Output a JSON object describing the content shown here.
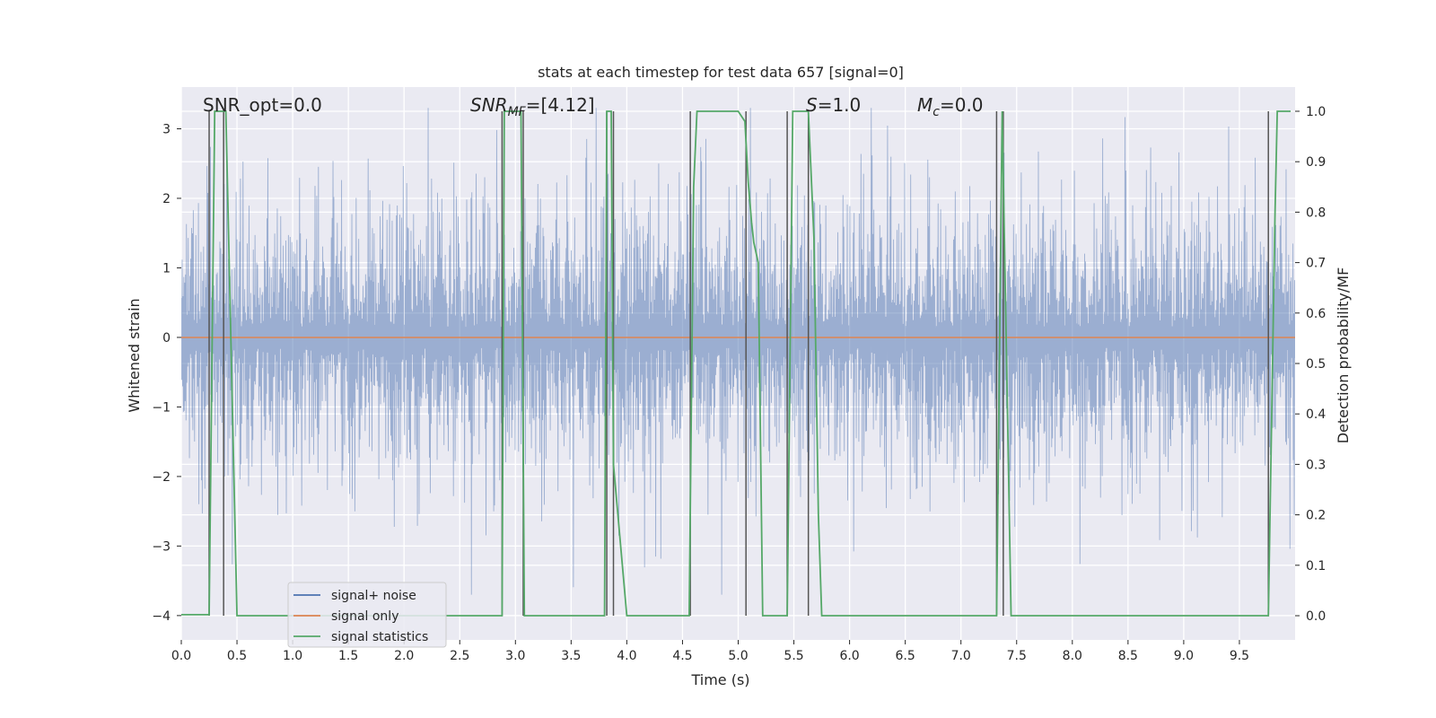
{
  "chart_data": {
    "type": "line",
    "title": "stats at each timestep for test data 657 [signal=0]",
    "xlabel": "Time (s)",
    "ylabel": "Whitened strain",
    "ylabel_right": "Detection probability/MF",
    "xlim": [
      0.0,
      10.0
    ],
    "ylim": [
      -4.35,
      3.6
    ],
    "ylim_right": [
      -0.048,
      1.048
    ],
    "x_ticks": [
      0.0,
      0.5,
      1.0,
      1.5,
      2.0,
      2.5,
      3.0,
      3.5,
      4.0,
      4.5,
      5.0,
      5.5,
      6.0,
      6.5,
      7.0,
      7.5,
      8.0,
      8.5,
      9.0,
      9.5
    ],
    "x_tick_labels": [
      "0.0",
      "0.5",
      "1.0",
      "1.5",
      "2.0",
      "2.5",
      "3.0",
      "3.5",
      "4.0",
      "4.5",
      "5.0",
      "5.5",
      "6.0",
      "6.5",
      "7.0",
      "7.5",
      "8.0",
      "8.5",
      "9.0",
      "9.5"
    ],
    "y_ticks": [
      3,
      2,
      1,
      0,
      -1,
      -2,
      -3,
      -4
    ],
    "y_tick_labels": [
      "3",
      "2",
      "1",
      "0",
      "−1",
      "−2",
      "−3",
      "−4"
    ],
    "y_right_ticks": [
      1.0,
      0.9,
      0.8,
      0.7,
      0.6,
      0.5,
      0.4,
      0.3,
      0.2,
      0.1,
      0.0
    ],
    "y_right_tick_labels": [
      "1.0",
      "0.9",
      "0.8",
      "0.7",
      "0.6",
      "0.5",
      "0.4",
      "0.3",
      "0.2",
      "0.1",
      "0.0"
    ],
    "grid": true,
    "legend_position": "lower-left",
    "annotations": {
      "snr_opt": "SNR_opt=0.0",
      "snr_mf": {
        "prefix": "SNR",
        "sub": "MF",
        "suffix": "=[4.12]"
      },
      "s": {
        "prefix": "S",
        "suffix": "=1.0"
      },
      "mc": {
        "prefix": "M",
        "sub": "c",
        "suffix": "=0.0"
      }
    },
    "series": [
      {
        "name": "signal+ noise",
        "color": "#4c72b0",
        "kind": "noise",
        "envelope": {
          "typical_abs": 1.8,
          "max": 3.3,
          "min": -3.7
        }
      },
      {
        "name": "signal only",
        "color": "#dd8452",
        "x": [
          0.0,
          10.0
        ],
        "y": [
          0.0,
          0.0
        ]
      },
      {
        "name": "signal statistics",
        "color": "#55a868",
        "axis": "right",
        "x": [
          0.0,
          0.25,
          0.3,
          0.35,
          0.4,
          0.5,
          0.51,
          2.88,
          2.9,
          2.94,
          3.05,
          3.08,
          3.8,
          3.82,
          3.86,
          3.88,
          4.0,
          4.56,
          4.6,
          4.63,
          5.0,
          5.06,
          5.09,
          5.12,
          5.14,
          5.18,
          5.22,
          5.26,
          5.44,
          5.49,
          5.63,
          5.68,
          5.72,
          5.75,
          7.32,
          7.37,
          7.45,
          7.47,
          9.76,
          9.82,
          9.84,
          9.96
        ],
        "y": [
          0.002,
          0.002,
          1.0,
          1.0,
          1.0,
          0.0,
          0.0,
          0.0,
          1.0,
          1.0,
          1.0,
          0.0,
          0.0,
          1.0,
          1.0,
          0.3,
          0.0,
          0.0,
          0.85,
          1.0,
          1.0,
          0.98,
          0.86,
          0.78,
          0.74,
          0.7,
          0.0,
          0.0,
          0.0,
          1.0,
          1.0,
          0.75,
          0.2,
          0.0,
          0.0,
          1.0,
          0.0,
          0.0,
          0.0,
          0.8,
          1.0,
          1.0
        ]
      }
    ],
    "vlines": [
      0.25,
      0.38,
      2.88,
      3.07,
      3.82,
      3.88,
      4.57,
      5.07,
      5.44,
      5.63,
      7.32,
      7.38,
      9.76
    ],
    "vline_color": "#555555",
    "legend": {
      "items": [
        {
          "label": "signal+ noise",
          "color": "#4c72b0"
        },
        {
          "label": "signal only",
          "color": "#dd8452"
        },
        {
          "label": "signal statistics",
          "color": "#55a868"
        }
      ]
    }
  }
}
